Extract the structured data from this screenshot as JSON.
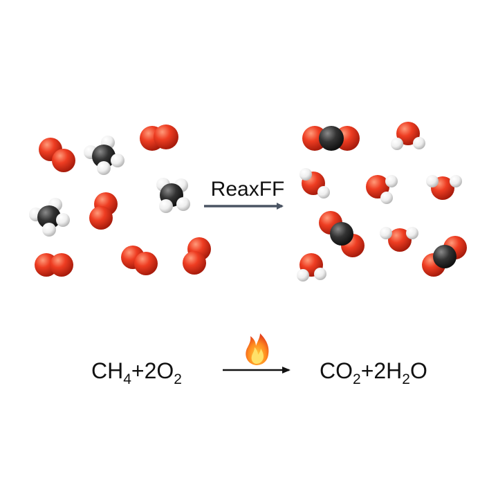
{
  "arrow_label": "ReaxFF",
  "equation": {
    "left": [
      {
        "text": "CH",
        "sub": "4"
      },
      {
        "text": "+2O",
        "sub": "2"
      }
    ],
    "right": [
      {
        "text": "CO",
        "sub": "2"
      },
      {
        "text": "+2H",
        "sub": "2"
      },
      {
        "text": "O",
        "sub": ""
      }
    ]
  },
  "colors": {
    "oxygen": "#e8361f",
    "carbon": "#2b2b2b",
    "hydrogen": "#f4f4f4",
    "arrow": "#4b5563",
    "flame": "#f59e0b"
  },
  "icons": [
    "flame-icon"
  ]
}
